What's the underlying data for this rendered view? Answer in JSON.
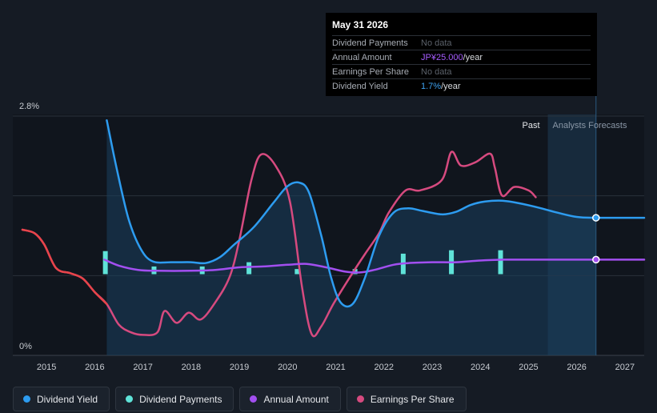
{
  "tooltip": {
    "date": "May 31 2026",
    "rows": [
      {
        "label": "Dividend Payments",
        "value": "No data",
        "unit": ""
      },
      {
        "label": "Annual Amount",
        "value": "JP¥25.000",
        "unit": "/year"
      },
      {
        "label": "Earnings Per Share",
        "value": "No data",
        "unit": ""
      },
      {
        "label": "Dividend Yield",
        "value": "1.7%",
        "unit": "/year"
      }
    ]
  },
  "regions": {
    "past": "Past",
    "forecast": "Analysts Forecasts"
  },
  "legend": [
    {
      "label": "Dividend Yield",
      "color": "#2d9cf0"
    },
    {
      "label": "Dividend Payments",
      "color": "#5fe3d8"
    },
    {
      "label": "Annual Amount",
      "color": "#a24ff0"
    },
    {
      "label": "Earnings Per Share",
      "color": "#d64a7f"
    }
  ],
  "chart_data": {
    "type": "line",
    "title": "",
    "xlabel": "",
    "ylabel": "",
    "x_ticks": [
      "2015",
      "2016",
      "2017",
      "2018",
      "2019",
      "2020",
      "2021",
      "2022",
      "2023",
      "2024",
      "2025",
      "2026",
      "2027"
    ],
    "xlim": [
      2014.3,
      2027.4
    ],
    "ylim": [
      0,
      2.8
    ],
    "y_tick_labels": [
      "2.8%",
      "0%"
    ],
    "forecast_start": 2025.4,
    "cursor_x": 2026.4,
    "series": [
      {
        "name": "Dividend Yield",
        "unit": "%",
        "color": "#2d9cf0",
        "points": [
          [
            2016.25,
            2.75
          ],
          [
            2016.45,
            2.2
          ],
          [
            2016.7,
            1.6
          ],
          [
            2016.95,
            1.25
          ],
          [
            2017.2,
            1.1
          ],
          [
            2017.6,
            1.09
          ],
          [
            2018.0,
            1.09
          ],
          [
            2018.3,
            1.08
          ],
          [
            2018.6,
            1.15
          ],
          [
            2018.9,
            1.3
          ],
          [
            2019.3,
            1.5
          ],
          [
            2019.7,
            1.78
          ],
          [
            2020.0,
            1.98
          ],
          [
            2020.25,
            2.02
          ],
          [
            2020.45,
            1.9
          ],
          [
            2020.7,
            1.4
          ],
          [
            2020.9,
            0.92
          ],
          [
            2021.1,
            0.62
          ],
          [
            2021.35,
            0.6
          ],
          [
            2021.6,
            0.9
          ],
          [
            2021.9,
            1.4
          ],
          [
            2022.2,
            1.67
          ],
          [
            2022.5,
            1.72
          ],
          [
            2022.8,
            1.69
          ],
          [
            2023.2,
            1.65
          ],
          [
            2023.5,
            1.68
          ],
          [
            2023.8,
            1.76
          ],
          [
            2024.1,
            1.8
          ],
          [
            2024.45,
            1.81
          ],
          [
            2024.8,
            1.78
          ],
          [
            2025.2,
            1.73
          ],
          [
            2025.6,
            1.67
          ],
          [
            2026.0,
            1.62
          ],
          [
            2026.4,
            1.61
          ],
          [
            2027.4,
            1.61
          ]
        ]
      },
      {
        "name": "Annual Amount",
        "unit": "JP¥",
        "color": "#a24ff0",
        "points": [
          [
            2016.2,
            1.12
          ],
          [
            2016.5,
            1.05
          ],
          [
            2016.9,
            1.0
          ],
          [
            2017.3,
            0.99
          ],
          [
            2018.0,
            0.99
          ],
          [
            2018.5,
            1.0
          ],
          [
            2019.0,
            1.03
          ],
          [
            2019.5,
            1.04
          ],
          [
            2020.0,
            1.06
          ],
          [
            2020.4,
            1.07
          ],
          [
            2020.8,
            1.03
          ],
          [
            2021.2,
            0.98
          ],
          [
            2021.5,
            0.97
          ],
          [
            2021.8,
            1.0
          ],
          [
            2022.2,
            1.06
          ],
          [
            2022.5,
            1.08
          ],
          [
            2023.0,
            1.09
          ],
          [
            2023.5,
            1.09
          ],
          [
            2024.0,
            1.11
          ],
          [
            2024.5,
            1.12
          ],
          [
            2025.0,
            1.12
          ],
          [
            2026.4,
            1.12
          ],
          [
            2027.4,
            1.12
          ]
        ]
      },
      {
        "name": "Earnings Per Share",
        "unit": "",
        "color": "#d64a7f",
        "points": [
          [
            2014.5,
            1.47
          ],
          [
            2014.75,
            1.43
          ],
          [
            2014.95,
            1.3
          ],
          [
            2015.2,
            1.02
          ],
          [
            2015.5,
            0.96
          ],
          [
            2015.75,
            0.9
          ],
          [
            2016.0,
            0.74
          ],
          [
            2016.25,
            0.6
          ],
          [
            2016.5,
            0.36
          ],
          [
            2016.75,
            0.27
          ],
          [
            2017.0,
            0.24
          ],
          [
            2017.3,
            0.27
          ],
          [
            2017.45,
            0.52
          ],
          [
            2017.7,
            0.38
          ],
          [
            2017.95,
            0.5
          ],
          [
            2018.2,
            0.42
          ],
          [
            2018.5,
            0.62
          ],
          [
            2018.8,
            0.92
          ],
          [
            2019.0,
            1.35
          ],
          [
            2019.25,
            2.05
          ],
          [
            2019.45,
            2.35
          ],
          [
            2019.75,
            2.22
          ],
          [
            2020.05,
            1.8
          ],
          [
            2020.3,
            0.8
          ],
          [
            2020.5,
            0.25
          ],
          [
            2020.7,
            0.34
          ],
          [
            2020.95,
            0.6
          ],
          [
            2021.3,
            0.92
          ],
          [
            2021.6,
            1.18
          ],
          [
            2021.9,
            1.43
          ],
          [
            2022.1,
            1.67
          ],
          [
            2022.45,
            1.93
          ],
          [
            2022.75,
            1.93
          ],
          [
            2023.2,
            2.05
          ],
          [
            2023.4,
            2.38
          ],
          [
            2023.6,
            2.22
          ],
          [
            2023.9,
            2.26
          ],
          [
            2024.2,
            2.36
          ],
          [
            2024.3,
            2.2
          ],
          [
            2024.45,
            1.87
          ],
          [
            2024.7,
            1.97
          ],
          [
            2025.0,
            1.93
          ],
          [
            2025.15,
            1.85
          ]
        ]
      }
    ],
    "dividend_payments": {
      "name": "Dividend Payments",
      "color": "#5fe3d8",
      "bars": [
        {
          "x": 2016.22,
          "value": 0.27
        },
        {
          "x": 2017.23,
          "value": 0.09
        },
        {
          "x": 2018.23,
          "value": 0.09
        },
        {
          "x": 2019.2,
          "value": 0.14
        },
        {
          "x": 2020.2,
          "value": 0.06
        },
        {
          "x": 2021.4,
          "value": 0.06
        },
        {
          "x": 2022.4,
          "value": 0.24
        },
        {
          "x": 2023.4,
          "value": 0.28
        },
        {
          "x": 2024.42,
          "value": 0.28
        }
      ]
    }
  }
}
